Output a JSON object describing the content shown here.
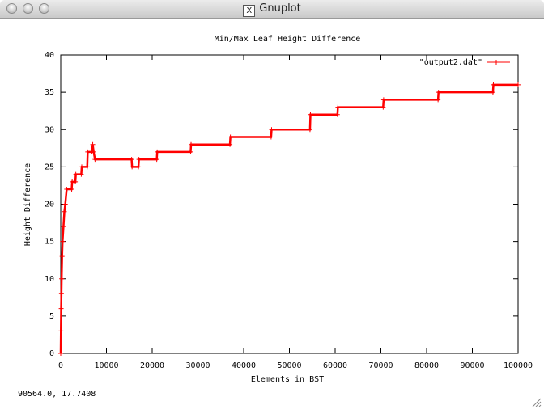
{
  "window": {
    "title": "Gnuplot",
    "status": "90564.0,  17.7408"
  },
  "chart_data": {
    "type": "line",
    "title": "Min/Max Leaf Height Difference",
    "x_label": "Elements in BST",
    "y_label": "Height Difference",
    "series": [
      {
        "name": "\"output2.dat\"",
        "color": "#ff0000",
        "x": [
          0,
          50,
          100,
          150,
          200,
          300,
          400,
          600,
          800,
          1000,
          1300,
          2400,
          2500,
          3200,
          3300,
          4500,
          4600,
          5800,
          5900,
          6800,
          7000,
          7200,
          7500,
          15500,
          15600,
          17000,
          17100,
          21000,
          21100,
          28400,
          28500,
          37000,
          37100,
          46000,
          46100,
          54500,
          54600,
          60500,
          60600,
          70500,
          70600,
          82500,
          82600,
          94500,
          94600,
          100000
        ],
        "values": [
          0,
          3,
          6,
          8,
          10,
          13,
          15,
          17,
          19,
          20,
          22,
          22,
          23,
          23,
          24,
          24,
          25,
          25,
          27,
          27,
          28,
          27,
          26,
          26,
          25,
          25,
          26,
          26,
          27,
          27,
          28,
          28,
          29,
          29,
          30,
          30,
          32,
          32,
          33,
          33,
          34,
          34,
          35,
          35,
          36,
          36
        ]
      }
    ],
    "xlim": [
      0,
      100000
    ],
    "xticks": [
      0,
      10000,
      20000,
      30000,
      40000,
      50000,
      60000,
      70000,
      80000,
      90000,
      100000
    ],
    "ylim": [
      0,
      40
    ],
    "yticks": [
      0,
      5,
      10,
      15,
      20,
      25,
      30,
      35,
      40
    ],
    "legend": "top-right"
  }
}
